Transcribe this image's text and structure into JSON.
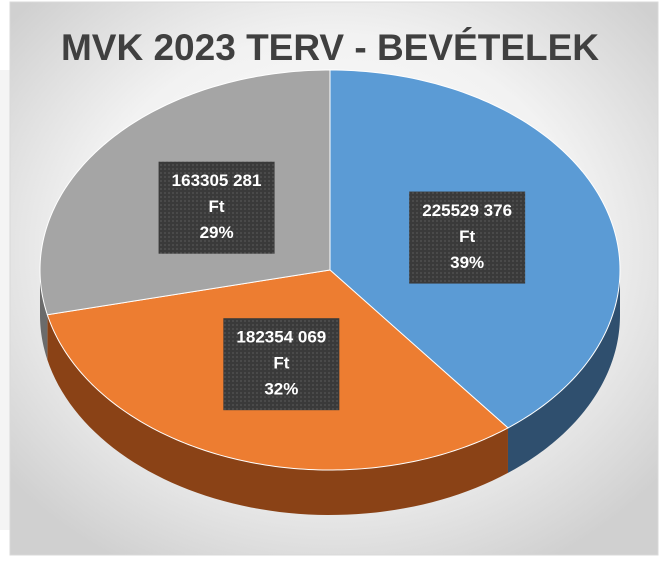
{
  "chart_data": {
    "type": "pie3d",
    "title": "MVK 2023 TERV - BEVÉTELEK",
    "values": [
      225529376,
      182354069,
      163305281
    ],
    "value_labels": [
      "225529 376",
      "182354 069",
      "163305 281"
    ],
    "unit": "Ft",
    "percent_values": [
      39,
      32,
      29
    ],
    "percent_labels": [
      "39%",
      "32%",
      "29%"
    ],
    "colors": [
      "#5b9bd5",
      "#ed7d31",
      "#a5a5a5"
    ],
    "side_colors": [
      "#2f4f6e",
      "#8a4216",
      "#6b6b6b"
    ]
  }
}
